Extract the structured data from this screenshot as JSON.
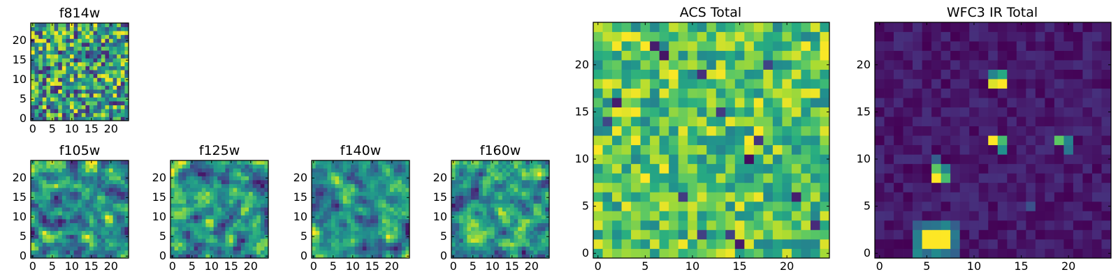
{
  "chart_data": [
    {
      "type": "heatmap",
      "id": "f814w",
      "title": "f814w",
      "grid_size": 25,
      "xlim": [
        -0.5,
        24.5
      ],
      "ylim": [
        -0.5,
        24.5
      ],
      "xticks": [
        0,
        5,
        10,
        15,
        20
      ],
      "yticks": [
        0,
        5,
        10,
        15,
        20
      ],
      "colormap": "viridis",
      "value_range": [
        0,
        1
      ],
      "pattern": "uniform random noise, mostly mid-to-high values",
      "pattern_params": {
        "kind": "noise",
        "seed": 11,
        "low": 0.1,
        "high": 1.0,
        "smooth": 0
      }
    },
    {
      "type": "heatmap",
      "id": "f105w",
      "title": "f105w",
      "grid_size": 25,
      "xlim": [
        -0.5,
        24.5
      ],
      "ylim": [
        -0.5,
        24.5
      ],
      "xticks": [
        0,
        5,
        10,
        15,
        20
      ],
      "yticks": [
        0,
        5,
        10,
        15,
        20
      ],
      "colormap": "viridis",
      "value_range": [
        0,
        1
      ],
      "pattern": "smoothed random noise",
      "pattern_params": {
        "kind": "noise",
        "seed": 23,
        "low": 0.05,
        "high": 1.0,
        "smooth": 1
      }
    },
    {
      "type": "heatmap",
      "id": "f125w",
      "title": "f125w",
      "grid_size": 25,
      "xlim": [
        -0.5,
        24.5
      ],
      "ylim": [
        -0.5,
        24.5
      ],
      "xticks": [
        0,
        5,
        10,
        15,
        20
      ],
      "yticks": [
        0,
        5,
        10,
        15,
        20
      ],
      "colormap": "viridis",
      "value_range": [
        0,
        1
      ],
      "pattern": "smoothed random noise",
      "pattern_params": {
        "kind": "noise",
        "seed": 37,
        "low": 0.05,
        "high": 1.0,
        "smooth": 1
      }
    },
    {
      "type": "heatmap",
      "id": "f140w",
      "title": "f140w",
      "grid_size": 25,
      "xlim": [
        -0.5,
        24.5
      ],
      "ylim": [
        -0.5,
        24.5
      ],
      "xticks": [
        0,
        5,
        10,
        15,
        20
      ],
      "yticks": [
        0,
        5,
        10,
        15,
        20
      ],
      "colormap": "viridis",
      "value_range": [
        0,
        1
      ],
      "pattern": "smoothed random noise",
      "pattern_params": {
        "kind": "noise",
        "seed": 51,
        "low": 0.05,
        "high": 1.0,
        "smooth": 1
      }
    },
    {
      "type": "heatmap",
      "id": "f160w",
      "title": "f160w",
      "grid_size": 25,
      "xlim": [
        -0.5,
        24.5
      ],
      "ylim": [
        -0.5,
        24.5
      ],
      "xticks": [
        0,
        5,
        10,
        15,
        20
      ],
      "yticks": [
        0,
        5,
        10,
        15,
        20
      ],
      "colormap": "viridis",
      "value_range": [
        0,
        1
      ],
      "pattern": "smoothed random noise",
      "pattern_params": {
        "kind": "noise",
        "seed": 67,
        "low": 0.05,
        "high": 1.0,
        "smooth": 1
      }
    },
    {
      "type": "heatmap",
      "id": "acs-total",
      "title": "ACS Total",
      "grid_size": 25,
      "xlim": [
        -0.5,
        24.5
      ],
      "ylim": [
        -0.5,
        24.5
      ],
      "xticks": [
        0,
        5,
        10,
        15,
        20
      ],
      "yticks": [
        0,
        5,
        10,
        15,
        20
      ],
      "colormap": "viridis",
      "value_range": [
        0,
        1
      ],
      "pattern": "random noise, mostly high (green/yellow) with a few dark pixels",
      "pattern_params": {
        "kind": "noise",
        "seed": 83,
        "low": 0.45,
        "high": 1.0,
        "smooth": 0,
        "dark_pixels": [
          [
            11,
            19
          ],
          [
            6,
            22
          ],
          [
            14,
            2
          ],
          [
            2,
            16
          ],
          [
            17,
            12
          ],
          [
            21,
            6
          ],
          [
            9,
            6
          ],
          [
            23,
            3
          ],
          [
            13,
            15
          ],
          [
            18,
            20
          ],
          [
            15,
            1
          ],
          [
            1,
            14
          ],
          [
            11,
            2
          ],
          [
            7,
            21
          ],
          [
            16,
            10
          ]
        ]
      }
    },
    {
      "type": "heatmap",
      "id": "wfc3-ir-total",
      "title": "WFC3 IR Total",
      "grid_size": 25,
      "xlim": [
        -0.5,
        24.5
      ],
      "ylim": [
        -0.5,
        24.5
      ],
      "xticks": [
        0,
        5,
        10,
        15,
        20
      ],
      "yticks": [
        0,
        5,
        10,
        15,
        20
      ],
      "colormap": "viridis",
      "value_range": [
        0,
        1
      ],
      "pattern": "low (dark purple) background with a few bright sources",
      "pattern_params": {
        "kind": "sources",
        "seed": 97,
        "background": [
          0.0,
          0.14
        ],
        "sources": [
          {
            "x": 5,
            "y": 1,
            "w": 3,
            "h": 2,
            "value": 1.0,
            "halo": 0.6
          },
          {
            "x": 6,
            "y": 8,
            "value": 1.0,
            "neighbors": [
              [
                6,
                9,
                0.75
              ],
              [
                7,
                8,
                0.7
              ],
              [
                7,
                9,
                0.45
              ],
              [
                6,
                10,
                0.3
              ]
            ]
          },
          {
            "x": 13,
            "y": 18,
            "value": 1.0,
            "neighbors": [
              [
                12,
                18,
                0.95
              ],
              [
                13,
                19,
                0.6
              ],
              [
                12,
                19,
                0.45
              ]
            ]
          },
          {
            "x": 12,
            "y": 12,
            "value": 1.0,
            "neighbors": [
              [
                13,
                12,
                0.7
              ],
              [
                13,
                11,
                0.5
              ]
            ]
          },
          {
            "x": 19,
            "y": 12,
            "value": 0.75,
            "neighbors": [
              [
                20,
                12,
                0.45
              ],
              [
                20,
                11,
                0.4
              ]
            ]
          },
          {
            "x": 16,
            "y": 5,
            "value": 0.25
          }
        ]
      }
    }
  ]
}
